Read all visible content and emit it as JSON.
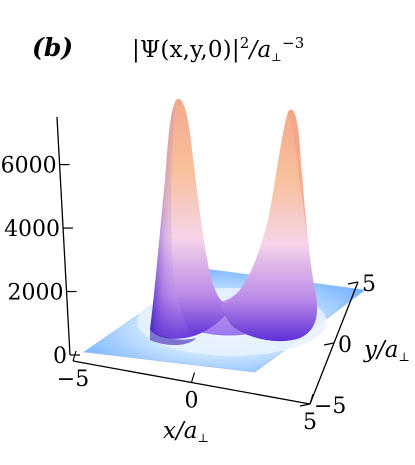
{
  "panel_label": "(b)",
  "title_parts": {
    "main": "|Ψ(x,y,0)|",
    "sup1": "2",
    "mid": "/a",
    "sub": "⊥",
    "sup2": "−3"
  },
  "axes": {
    "x_label": "x/a",
    "y_label": "y/a",
    "perp_symbol": "⊥"
  },
  "chart_data": {
    "type": "surface",
    "title": "|Ψ(x,y,0)|²/a⊥⁻³",
    "xlabel": "x/a⊥",
    "ylabel": "y/a⊥",
    "x_ticks": [
      "−5",
      "0",
      "5"
    ],
    "y_ticks": [
      "−5",
      "0",
      "5"
    ],
    "z_ticks": [
      "0",
      "2000",
      "4000",
      "6000"
    ],
    "xlim": [
      -5,
      5
    ],
    "ylim": [
      -5,
      5
    ],
    "zlim": [
      0,
      7500
    ],
    "peaks": [
      {
        "x": -1.6,
        "y": 0.9,
        "z": 7300
      },
      {
        "x": 1.6,
        "y": -0.9,
        "z": 6950
      }
    ],
    "colors": {
      "base": "#7fb6ff",
      "mid": "#b070e8",
      "high": "#f7b68a",
      "shadow": "#3a1fb0"
    }
  }
}
